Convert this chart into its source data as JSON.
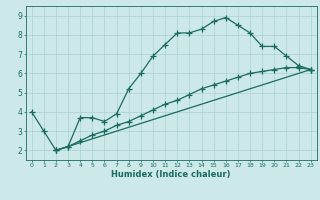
{
  "xlabel": "Humidex (Indice chaleur)",
  "ylabel": "",
  "xlim": [
    -0.5,
    23.5
  ],
  "ylim": [
    1.5,
    9.5
  ],
  "xticks": [
    0,
    1,
    2,
    3,
    4,
    5,
    6,
    7,
    8,
    9,
    10,
    11,
    12,
    13,
    14,
    15,
    16,
    17,
    18,
    19,
    20,
    21,
    22,
    23
  ],
  "yticks": [
    2,
    3,
    4,
    5,
    6,
    7,
    8,
    9
  ],
  "background_color": "#cce8e8",
  "grid_color": "#aad0d0",
  "line_color": "#1a6b60",
  "series1": {
    "x": [
      0,
      1,
      2,
      3,
      4,
      5,
      6,
      7,
      8,
      9,
      10,
      11,
      12,
      13,
      14,
      15,
      16,
      17,
      18,
      19,
      20,
      21,
      22,
      23
    ],
    "y": [
      4.0,
      3.0,
      2.0,
      2.2,
      3.7,
      3.7,
      3.5,
      3.9,
      5.2,
      6.0,
      6.9,
      7.5,
      8.1,
      8.1,
      8.3,
      8.7,
      8.9,
      8.5,
      8.1,
      7.4,
      7.4,
      6.9,
      6.4,
      6.2
    ]
  },
  "series2": {
    "x": [
      2,
      23
    ],
    "y": [
      2.0,
      6.2
    ]
  },
  "series3": {
    "x": [
      2,
      3,
      4,
      5,
      6,
      7,
      8,
      9,
      10,
      11,
      12,
      13,
      14,
      15,
      16,
      17,
      18,
      19,
      20,
      21,
      22,
      23
    ],
    "y": [
      2.0,
      2.2,
      2.5,
      2.8,
      3.0,
      3.3,
      3.5,
      3.8,
      4.1,
      4.4,
      4.6,
      4.9,
      5.2,
      5.4,
      5.6,
      5.8,
      6.0,
      6.1,
      6.2,
      6.3,
      6.3,
      6.2
    ]
  }
}
